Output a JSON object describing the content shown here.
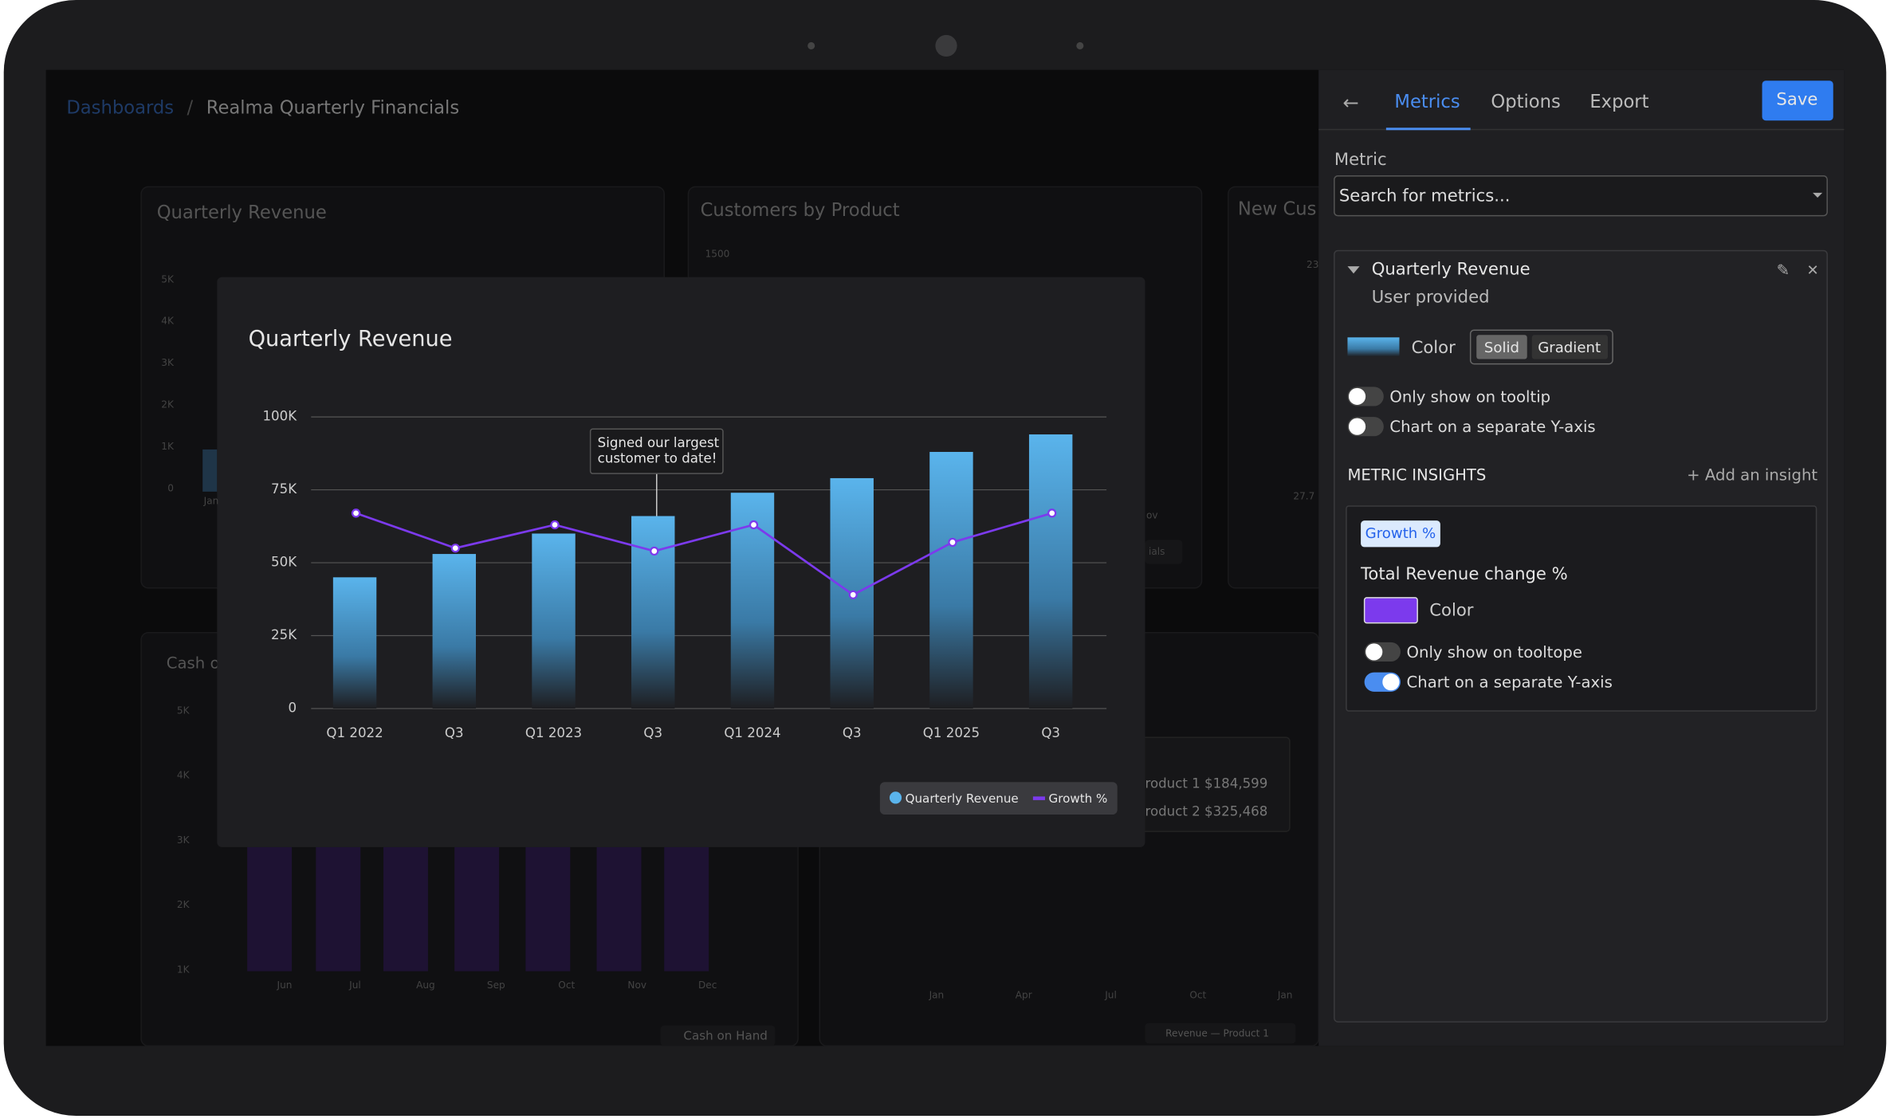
{
  "breadcrumb": {
    "root": "Dashboards",
    "current": "Realma Quarterly Financials"
  },
  "background": {
    "cards": [
      "Quarterly Revenue",
      "Customers by Product",
      "New Cus",
      "Cash o"
    ],
    "qr_ticks": [
      "5K",
      "4K",
      "3K",
      "2K",
      "1K",
      "0"
    ],
    "qr_x": "Jan",
    "cp_tick": "1500",
    "nc_ticks": [
      "23",
      "27.7"
    ],
    "cp_fragments": [
      "ov",
      "ials"
    ],
    "cash_ticks": [
      "5K",
      "4K",
      "3K",
      "2K",
      "1K"
    ],
    "cash_months": [
      "Jun",
      "Jul",
      "Aug",
      "Sep",
      "Oct",
      "Nov",
      "Dec"
    ],
    "cash_legend": "Cash on Hand",
    "tooltip": [
      "roduct 1 $184,599",
      "roduct 2 $325,468"
    ],
    "rev_months": [
      "Jan",
      "Apr",
      "Jul",
      "Oct",
      "Jan"
    ],
    "rev_legend": "Revenue — Product 1"
  },
  "chart": {
    "chart_data": {
      "type": "bar",
      "title": "Quarterly Revenue",
      "categories": [
        "Q1 2022",
        "Q3",
        "Q1 2023",
        "Q3",
        "Q1 2024",
        "Q3",
        "Q1 2025",
        "Q3"
      ],
      "series": [
        {
          "name": "Quarterly Revenue",
          "color": "#5ab4ec",
          "values": [
            45000,
            53000,
            60000,
            66000,
            74000,
            79000,
            88000,
            94000
          ]
        },
        {
          "name": "Growth %",
          "color": "#7c3aed",
          "type": "line",
          "values": [
            67000,
            55000,
            63000,
            54000,
            63000,
            39000,
            57000,
            67000
          ]
        }
      ],
      "ylim": [
        0,
        100000
      ],
      "yticks": [
        0,
        {
          "value": 25000,
          "label": "25K"
        },
        {
          "value": 50000,
          "label": "50K"
        },
        {
          "value": 75000,
          "label": "75K"
        },
        {
          "value": 100000,
          "label": "100K"
        }
      ],
      "grid": true,
      "annotation": [
        "Signed our largest",
        "customer to date!"
      ]
    }
  },
  "panel": {
    "tabs": [
      "Metrics",
      "Options",
      "Export"
    ],
    "save": "Save",
    "metric_label": "Metric",
    "search": "Search for metrics...",
    "metric": {
      "name": "Quarterly Revenue",
      "source": "User provided",
      "color_label": "Color",
      "modes": [
        "Solid",
        "Gradient"
      ],
      "options": [
        {
          "label": "Only show on tooltip",
          "on": false
        },
        {
          "label": "Chart on a separate Y-axis",
          "on": false
        }
      ]
    },
    "insights_title": "METRIC INSIGHTS",
    "add_insight": "+ Add an insight",
    "insight": {
      "tag": "Growth %",
      "name": "Total Revenue change %",
      "color_label": "Color",
      "color": "#7c3aed",
      "options": [
        {
          "label": "Only show on tooltope",
          "on": false
        },
        {
          "label": "Chart on a separate Y-axis",
          "on": true
        }
      ]
    }
  }
}
